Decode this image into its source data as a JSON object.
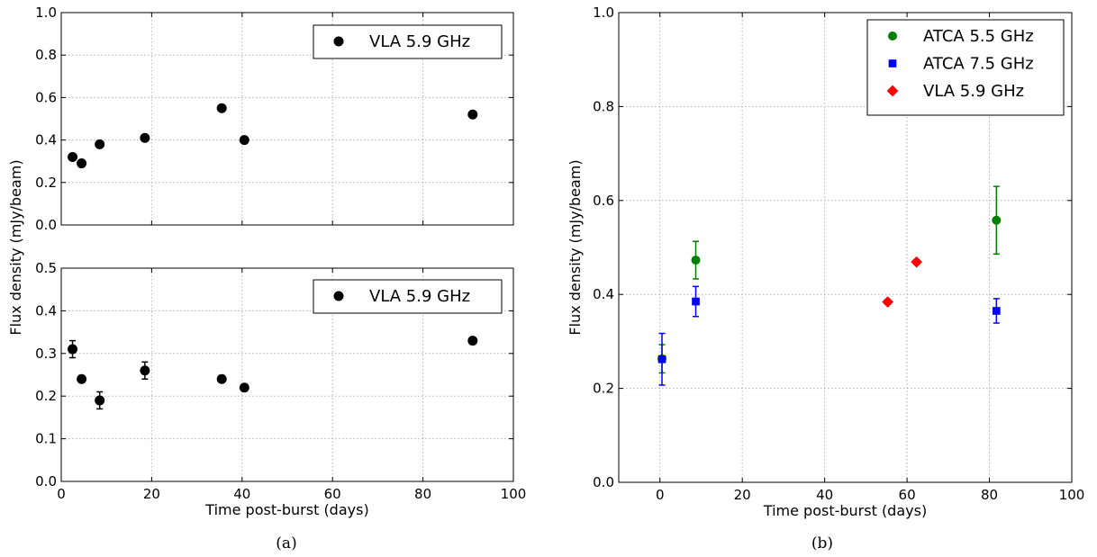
{
  "chart_data": [
    {
      "type": "scatter",
      "panel": "left-top",
      "title": "",
      "xlabel": "",
      "ylabel": "",
      "xlim": [
        0,
        100
      ],
      "ylim": [
        0.0,
        1.0
      ],
      "yticks": [
        "0.0",
        "0.2",
        "0.4",
        "0.6",
        "0.8",
        "1.0"
      ],
      "xticks_labeled": false,
      "grid": true,
      "legend_position": "top-right",
      "series": [
        {
          "name": "VLA 5.9 GHz",
          "marker": "circle",
          "color": "#000000",
          "x": [
            2.5,
            4.5,
            8.5,
            18.5,
            35.5,
            40.5,
            91.0
          ],
          "y": [
            0.32,
            0.29,
            0.38,
            0.41,
            0.55,
            0.4,
            0.52
          ],
          "err": [
            0.015,
            0.01,
            0.01,
            0.015,
            0.01,
            0.015,
            0.01
          ]
        }
      ]
    },
    {
      "type": "scatter",
      "panel": "left-bottom",
      "title": "",
      "xlabel": "Time post-burst (days)",
      "ylabel": "",
      "xlim": [
        0,
        100
      ],
      "ylim": [
        0.0,
        0.5
      ],
      "xticks": [
        "0",
        "20",
        "40",
        "60",
        "80",
        "100"
      ],
      "yticks": [
        "0.0",
        "0.1",
        "0.2",
        "0.3",
        "0.4",
        "0.5"
      ],
      "grid": true,
      "legend_position": "top-right",
      "series": [
        {
          "name": "VLA 5.9 GHz",
          "marker": "circle",
          "color": "#000000",
          "x": [
            2.5,
            4.5,
            8.5,
            18.5,
            35.5,
            40.5,
            91.0
          ],
          "y": [
            0.31,
            0.24,
            0.19,
            0.26,
            0.24,
            0.22,
            0.33
          ],
          "err": [
            0.02,
            0.008,
            0.02,
            0.02,
            0.008,
            0.008,
            0.008
          ]
        }
      ]
    },
    {
      "type": "scatter",
      "panel": "right",
      "title": "",
      "xlabel": "Time post-burst (days)",
      "ylabel": "Flux density (mJy/beam)",
      "xlim": [
        -10,
        100
      ],
      "ylim": [
        0.0,
        1.0
      ],
      "xticks": [
        "0",
        "20",
        "40",
        "60",
        "80",
        "100"
      ],
      "yticks": [
        "0.0",
        "0.2",
        "0.4",
        "0.6",
        "0.8",
        "1.0"
      ],
      "grid": true,
      "legend_position": "top-right",
      "series": [
        {
          "name": "ATCA 5.5 GHz",
          "marker": "circle",
          "color": "#008000",
          "x": [
            0.5,
            8.7,
            81.7
          ],
          "y": [
            0.263,
            0.473,
            0.558
          ],
          "err": [
            0.03,
            0.04,
            0.072
          ]
        },
        {
          "name": "ATCA 7.5 GHz",
          "marker": "square",
          "color": "#0000ff",
          "x": [
            0.5,
            8.7,
            81.7
          ],
          "y": [
            0.262,
            0.385,
            0.365
          ],
          "err": [
            0.055,
            0.032,
            0.026
          ]
        },
        {
          "name": "VLA 5.9 GHz",
          "marker": "diamond",
          "color": "#ff0000",
          "x": [
            55.3,
            62.3
          ],
          "y": [
            0.384,
            0.469
          ],
          "err": [
            0.005,
            0.005
          ]
        }
      ]
    }
  ],
  "figure": {
    "left_ylabel": "Flux density (mJy/beam)",
    "caption_a": "(a)",
    "caption_b": "(b)"
  }
}
